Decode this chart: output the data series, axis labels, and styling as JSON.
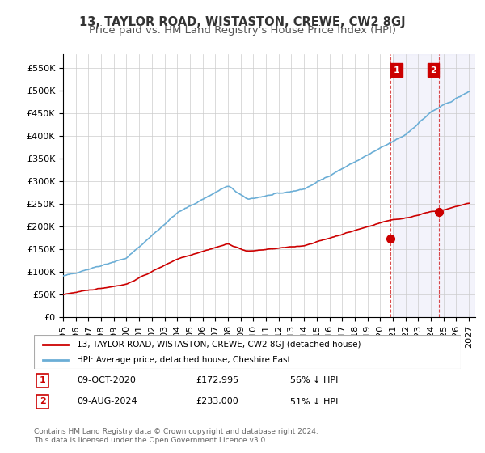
{
  "title": "13, TAYLOR ROAD, WISTASTON, CREWE, CW2 8GJ",
  "subtitle": "Price paid vs. HM Land Registry's House Price Index (HPI)",
  "ylabel_ticks": [
    "£0",
    "£50K",
    "£100K",
    "£150K",
    "£200K",
    "£250K",
    "£300K",
    "£350K",
    "£400K",
    "£450K",
    "£500K",
    "£550K"
  ],
  "ytick_values": [
    0,
    50000,
    100000,
    150000,
    200000,
    250000,
    300000,
    350000,
    400000,
    450000,
    500000,
    550000
  ],
  "ylim": [
    0,
    580000
  ],
  "xlim_start": 1995.0,
  "xlim_end": 2027.5,
  "xtick_years": [
    1995,
    1996,
    1997,
    1998,
    1999,
    2000,
    2001,
    2002,
    2003,
    2004,
    2005,
    2006,
    2007,
    2008,
    2009,
    2010,
    2011,
    2012,
    2013,
    2014,
    2015,
    2016,
    2017,
    2018,
    2019,
    2020,
    2021,
    2022,
    2023,
    2024,
    2025,
    2026,
    2027
  ],
  "hpi_color": "#6baed6",
  "price_color": "#cc0000",
  "marker1_date": 2020.78,
  "marker1_price": 172995,
  "marker2_date": 2024.61,
  "marker2_price": 233000,
  "marker1_label": "1",
  "marker2_label": "2",
  "legend_red_label": "13, TAYLOR ROAD, WISTASTON, CREWE, CW2 8GJ (detached house)",
  "legend_blue_label": "HPI: Average price, detached house, Cheshire East",
  "table_row1": [
    "1",
    "09-OCT-2020",
    "£172,995",
    "56% ↓ HPI"
  ],
  "table_row2": [
    "2",
    "09-AUG-2024",
    "£233,000",
    "51% ↓ HPI"
  ],
  "footnote": "Contains HM Land Registry data © Crown copyright and database right 2024.\nThis data is licensed under the Open Government Licence v3.0.",
  "shaded_region_start": 2021.0,
  "shaded_region_end": 2027.5,
  "background_color": "#ffffff",
  "grid_color": "#cccccc",
  "title_fontsize": 10.5,
  "subtitle_fontsize": 9.5,
  "tick_fontsize": 8
}
